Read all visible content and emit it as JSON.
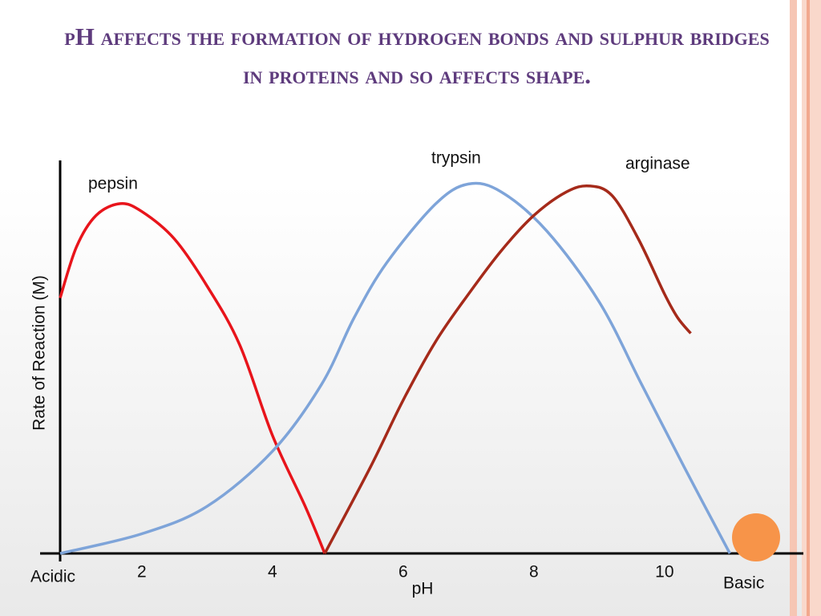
{
  "chart_data": {
    "type": "line",
    "title": "pH affects the formation of hydrogen bonds and sulphur bridges in proteins and so affects shape.",
    "xlabel": "pH",
    "ylabel": "Rate of Reaction (M)",
    "annotations": [
      "Acidic",
      "Basic"
    ],
    "xlim": [
      0.75,
      12.1
    ],
    "ylim": [
      0,
      100
    ],
    "xticks": [
      2,
      4,
      6,
      8,
      10
    ],
    "series": [
      {
        "name": "pepsin",
        "color": "#e8141b",
        "x": [
          0.75,
          1.0,
          1.3,
          1.67,
          2.0,
          2.5,
          3.0,
          3.5,
          4.0,
          4.5,
          4.8
        ],
        "values": [
          65,
          78,
          86,
          89,
          87,
          80,
          68,
          53,
          30,
          12,
          0
        ]
      },
      {
        "name": "trypsin",
        "color": "#7ea4d9",
        "x": [
          0.75,
          2,
          3,
          4,
          4.75,
          5.25,
          5.75,
          6.5,
          7.0,
          7.5,
          8.2,
          9,
          9.65,
          10.3,
          11.0
        ],
        "values": [
          0,
          5,
          12,
          26,
          43,
          60,
          74,
          89,
          94,
          92,
          82,
          64,
          43,
          22,
          0
        ]
      },
      {
        "name": "arginase",
        "color": "#a52a1a",
        "x": [
          4.8,
          5.5,
          6,
          6.5,
          7,
          7.5,
          8,
          8.5,
          8.85,
          9.2,
          9.6,
          10,
          10.2,
          10.4
        ],
        "values": [
          0,
          22,
          39,
          54,
          66,
          77,
          86,
          92,
          93.5,
          91,
          80,
          66,
          60,
          56
        ]
      }
    ]
  }
}
